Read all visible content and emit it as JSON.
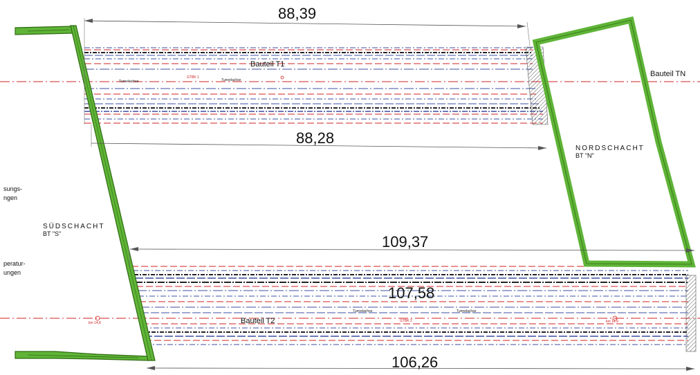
{
  "dimensions": {
    "top_upper": "88,39",
    "top_lower": "88,28",
    "bottom_upper": "109,37",
    "bottom_mid": "107,58",
    "bottom_lower": "106,26"
  },
  "labels": {
    "bauteil_t1": "Bauteil T1",
    "bauteil_t2": "Bauteil T2",
    "bauteil_tn": "Bauteil TN",
    "nordschacht": "NORDSCHACHT",
    "nordschacht_bt": "BT \"N\"",
    "suedschacht": "SÜDSCHACHT",
    "suedschacht_bt": "BT \"S\"",
    "left_text_1a": "sungs-",
    "left_text_1b": "ngen",
    "left_text_2a": "peratur-",
    "left_text_2b": "ungen",
    "tunnelachse": "Tunnelachse",
    "km_left": "km 14,8",
    "km_right": "km 14,9",
    "tube1": "GTBK 1",
    "tube2": "GTBK 2"
  },
  "colors": {
    "wall_green": "#5fb437",
    "wall_stroke": "#2f6b12",
    "axis_red": "#d02020",
    "line_blue": "#3c4fa0",
    "line_dark": "#222222"
  }
}
